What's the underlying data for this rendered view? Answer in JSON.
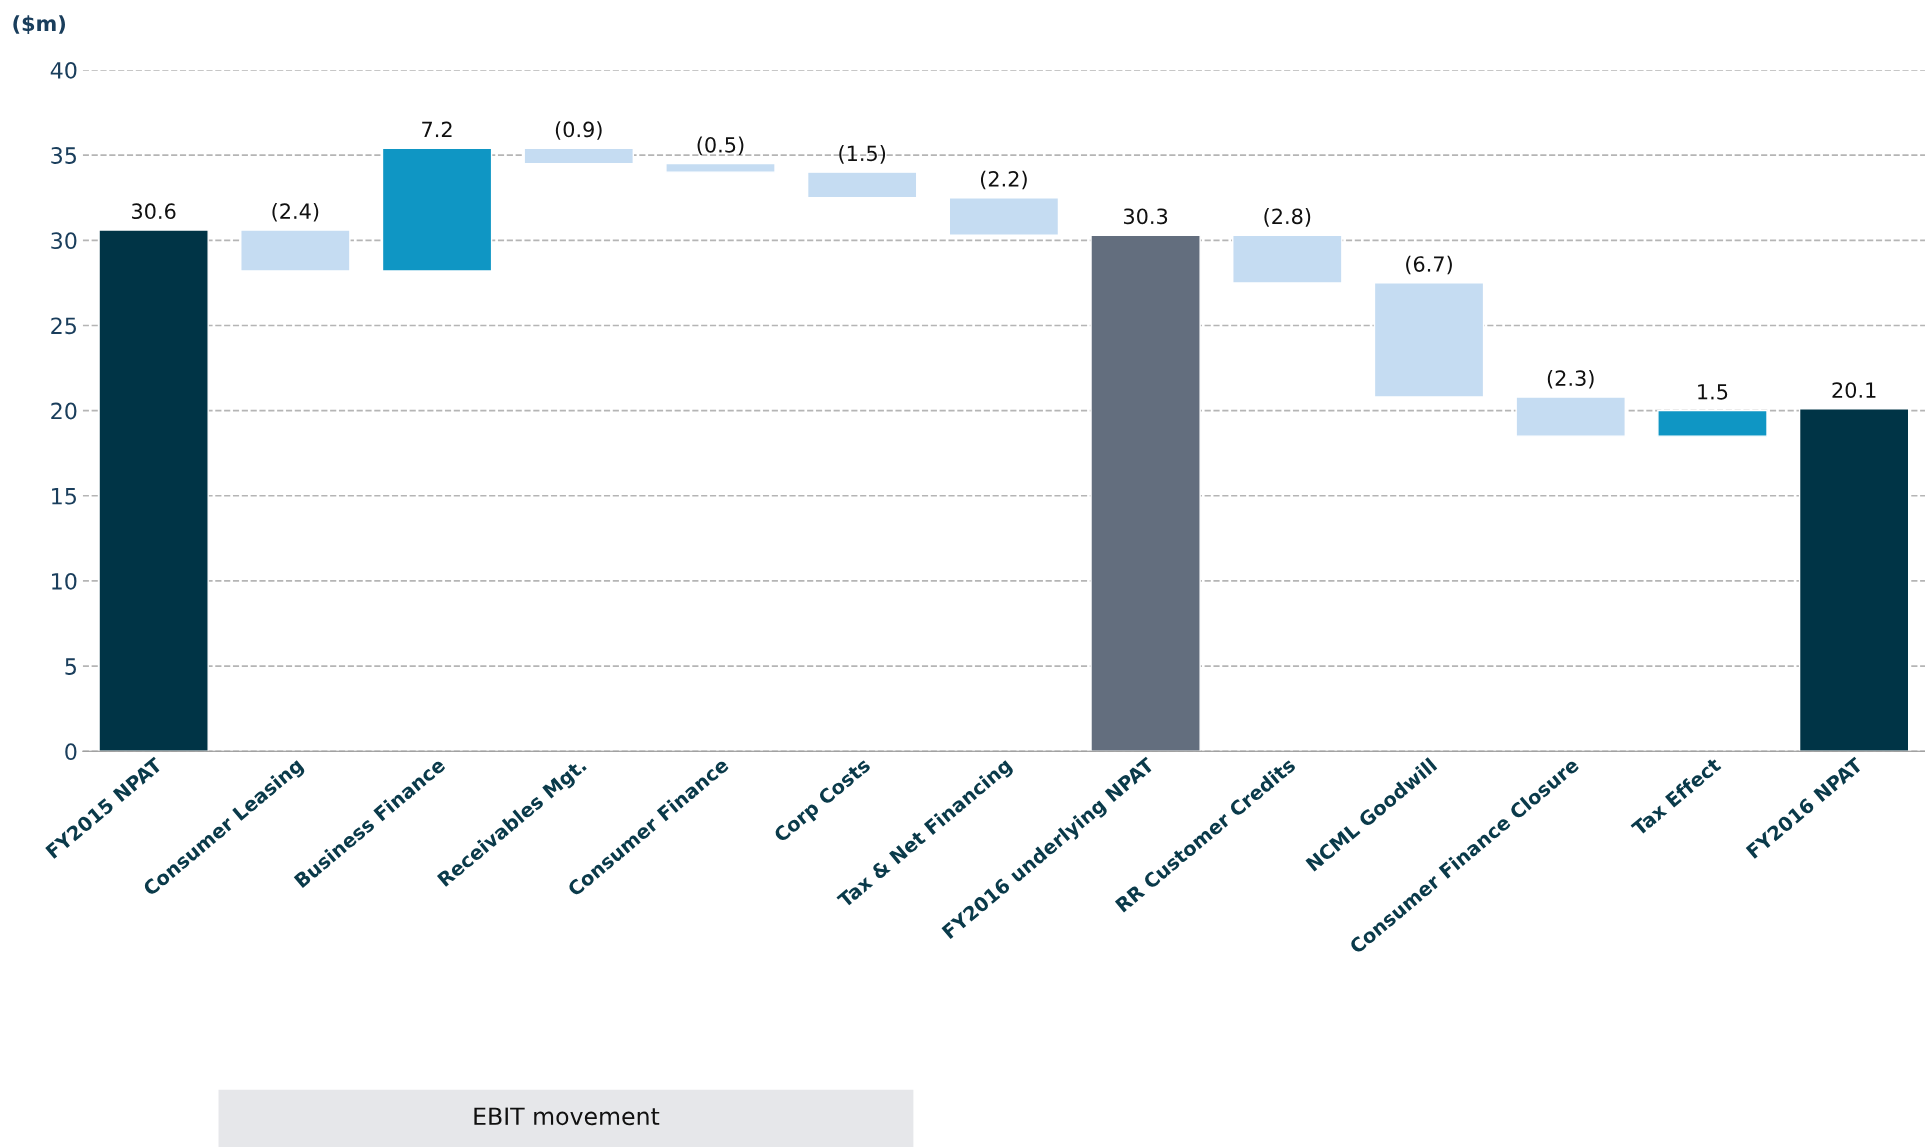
{
  "chart_data": {
    "type": "bar",
    "ylabel": "($m)",
    "categories": [
      "FY2015 NPAT",
      "Consumer Leasing",
      "Business Finance",
      "Receivables Mgt.",
      "Consumer Finance",
      "Corp Costs",
      "Tax & Net Financing",
      "FY2016 underlying NPAT",
      "RR Customer Credits",
      "NCML Goodwill",
      "Consumer Finance Closure",
      "Tax Effect",
      "FY2016 NPAT"
    ],
    "values": [
      30.6,
      -2.4,
      7.2,
      -0.9,
      -0.5,
      -1.5,
      -2.2,
      30.3,
      -2.8,
      -6.7,
      -2.3,
      1.5,
      20.1
    ],
    "base": [
      0,
      30.6,
      28.2,
      35.4,
      34.5,
      34.0,
      32.5,
      0,
      30.3,
      27.5,
      20.8,
      18.5,
      0
    ],
    "colors": [
      "#003446",
      "#c5dcf2",
      "#0f96c4",
      "#c5dcf2",
      "#c5dcf2",
      "#c5dcf2",
      "#c5dcf2",
      "#636e7e",
      "#c5dcf2",
      "#c5dcf2",
      "#c5dcf2",
      "#0f96c4",
      "#003446"
    ],
    "value_labels": [
      "30.6",
      "(2.4)",
      "7.2",
      "(0.9)",
      "(0.5)",
      "(1.5)",
      "(2.2)",
      "30.3",
      "(2.8)",
      "(6.7)",
      "(2.3)",
      "1.5",
      "20.1"
    ],
    "ylim": [
      0,
      40
    ],
    "yticks": [
      0,
      5,
      10,
      15,
      20,
      25,
      30,
      35,
      40
    ],
    "grid": "y",
    "annotations": [
      "EBIT movement"
    ]
  }
}
